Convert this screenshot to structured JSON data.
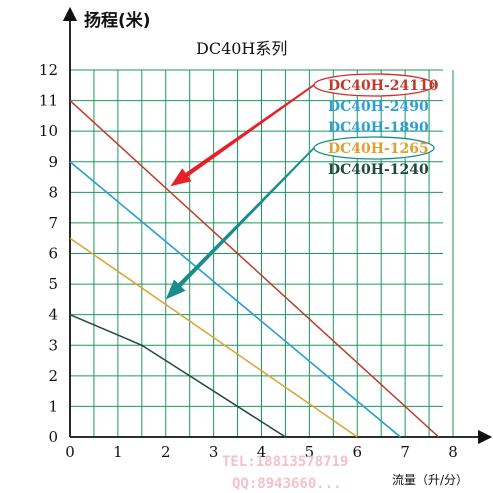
{
  "chart_data": {
    "type": "line",
    "title": "DC40H系列",
    "ylabel": "扬程(米)",
    "xlabel": "流量（升/分）",
    "xlim": [
      0,
      8
    ],
    "ylim": [
      0,
      12
    ],
    "x_ticks": [
      "0",
      "1",
      "2",
      "3",
      "4",
      "5",
      "6",
      "7",
      "8"
    ],
    "y_ticks": [
      "0",
      "1",
      "2",
      "3",
      "4",
      "5",
      "6",
      "7",
      "8",
      "9",
      "10",
      "11",
      "12"
    ],
    "grid": true,
    "grid_color": "#1a9a5a",
    "legend_position": "top-right",
    "series": [
      {
        "name": "DC40H-24110",
        "color": "#c0392b",
        "x": [
          0,
          7.7
        ],
        "y": [
          11,
          0
        ],
        "circled": true,
        "circle_color": "#d62828"
      },
      {
        "name": "DC40H-2490",
        "color": "#2e9fd6",
        "x": [
          0,
          6.9
        ],
        "y": [
          9,
          0
        ]
      },
      {
        "name": "DC40H-1890",
        "color": "#2e9fd6",
        "x": [
          0,
          6.9
        ],
        "y": [
          9,
          0
        ]
      },
      {
        "name": "DC40H-1265",
        "color": "#e0a030",
        "x": [
          0,
          6.0
        ],
        "y": [
          6.5,
          0
        ],
        "circled": true,
        "circle_color": "#1a8c8c"
      },
      {
        "name": "DC40H-1240",
        "color": "#1e4a3a",
        "x": [
          0,
          1.5,
          4.5
        ],
        "y": [
          4,
          3,
          0
        ]
      }
    ],
    "arrows": [
      {
        "color": "#e8202a",
        "from_legend": "DC40H-24110",
        "to_x": 2.1,
        "to_y": 8.2
      },
      {
        "color": "#1a8c8c",
        "from_legend": "DC40H-1265",
        "to_x": 2.0,
        "to_y": 4.5
      }
    ],
    "watermark": [
      "TEL:18813578719",
      "QQ:8943660..."
    ]
  }
}
